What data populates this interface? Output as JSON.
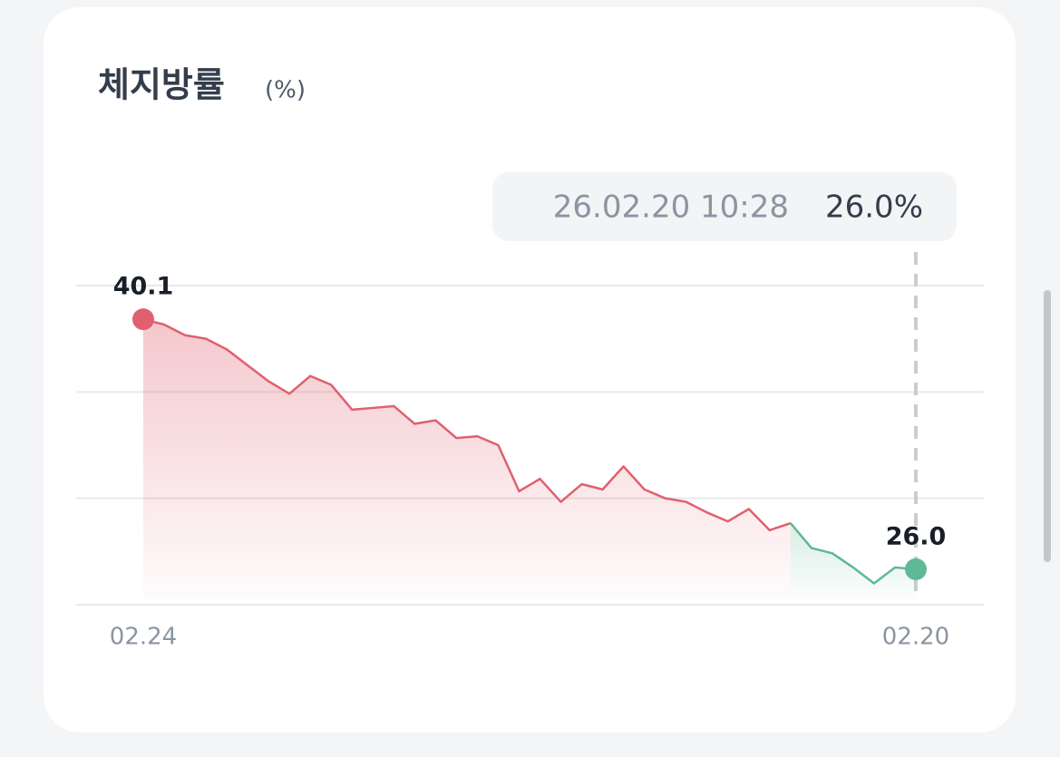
{
  "chart_data": {
    "type": "line",
    "title": "체지방률",
    "subtitle": "(%)",
    "categories": [
      "02.24",
      null,
      null,
      null,
      null,
      null,
      null,
      null,
      null,
      null,
      null,
      null,
      null,
      null,
      null,
      null,
      null,
      null,
      null,
      null,
      null,
      null,
      null,
      null,
      null,
      null,
      null,
      null,
      null,
      null,
      null,
      null,
      null,
      null,
      null,
      null,
      null,
      "02.20"
    ],
    "series": [
      {
        "color": "#e0606f",
        "values": [
          40.1,
          39.8,
          39.2,
          39.0,
          38.4,
          37.5,
          36.6,
          35.9,
          36.9,
          36.4,
          35.0,
          35.1,
          35.2,
          34.2,
          34.4,
          33.4,
          33.5,
          33.0,
          30.4,
          31.1,
          29.8,
          30.8,
          30.5,
          31.8,
          30.5,
          30.0,
          29.8,
          29.2,
          28.7,
          29.4,
          28.2,
          28.6,
          null,
          null,
          null,
          null,
          null,
          null
        ],
        "value_labels": [
          "40.1",
          null,
          null,
          null,
          null,
          null,
          null,
          null,
          null,
          null,
          null,
          null,
          null,
          null,
          null,
          null,
          null,
          null,
          null,
          null,
          null,
          null,
          null,
          null,
          null,
          null,
          null,
          null,
          null,
          null,
          null,
          null,
          null,
          null,
          null,
          null,
          null,
          null
        ]
      },
      {
        "color": "#5fb896",
        "values": [
          null,
          null,
          null,
          null,
          null,
          null,
          null,
          null,
          null,
          null,
          null,
          null,
          null,
          null,
          null,
          null,
          null,
          null,
          null,
          null,
          null,
          null,
          null,
          null,
          null,
          null,
          null,
          null,
          null,
          null,
          null,
          28.6,
          27.2,
          26.9,
          26.1,
          25.2,
          26.1,
          26.0
        ],
        "value_labels": [
          null,
          null,
          null,
          null,
          null,
          null,
          null,
          null,
          null,
          null,
          null,
          null,
          null,
          null,
          null,
          null,
          null,
          null,
          null,
          null,
          null,
          null,
          null,
          null,
          null,
          null,
          null,
          null,
          null,
          null,
          null,
          null,
          null,
          null,
          null,
          null,
          null,
          "26.0"
        ]
      }
    ],
    "ylim": [
      24,
      42
    ],
    "yticks": [
      24,
      30,
      36,
      42
    ],
    "grid": true,
    "tooltip": {
      "label": "26.02.20 10:28",
      "value": "26.0%"
    }
  }
}
